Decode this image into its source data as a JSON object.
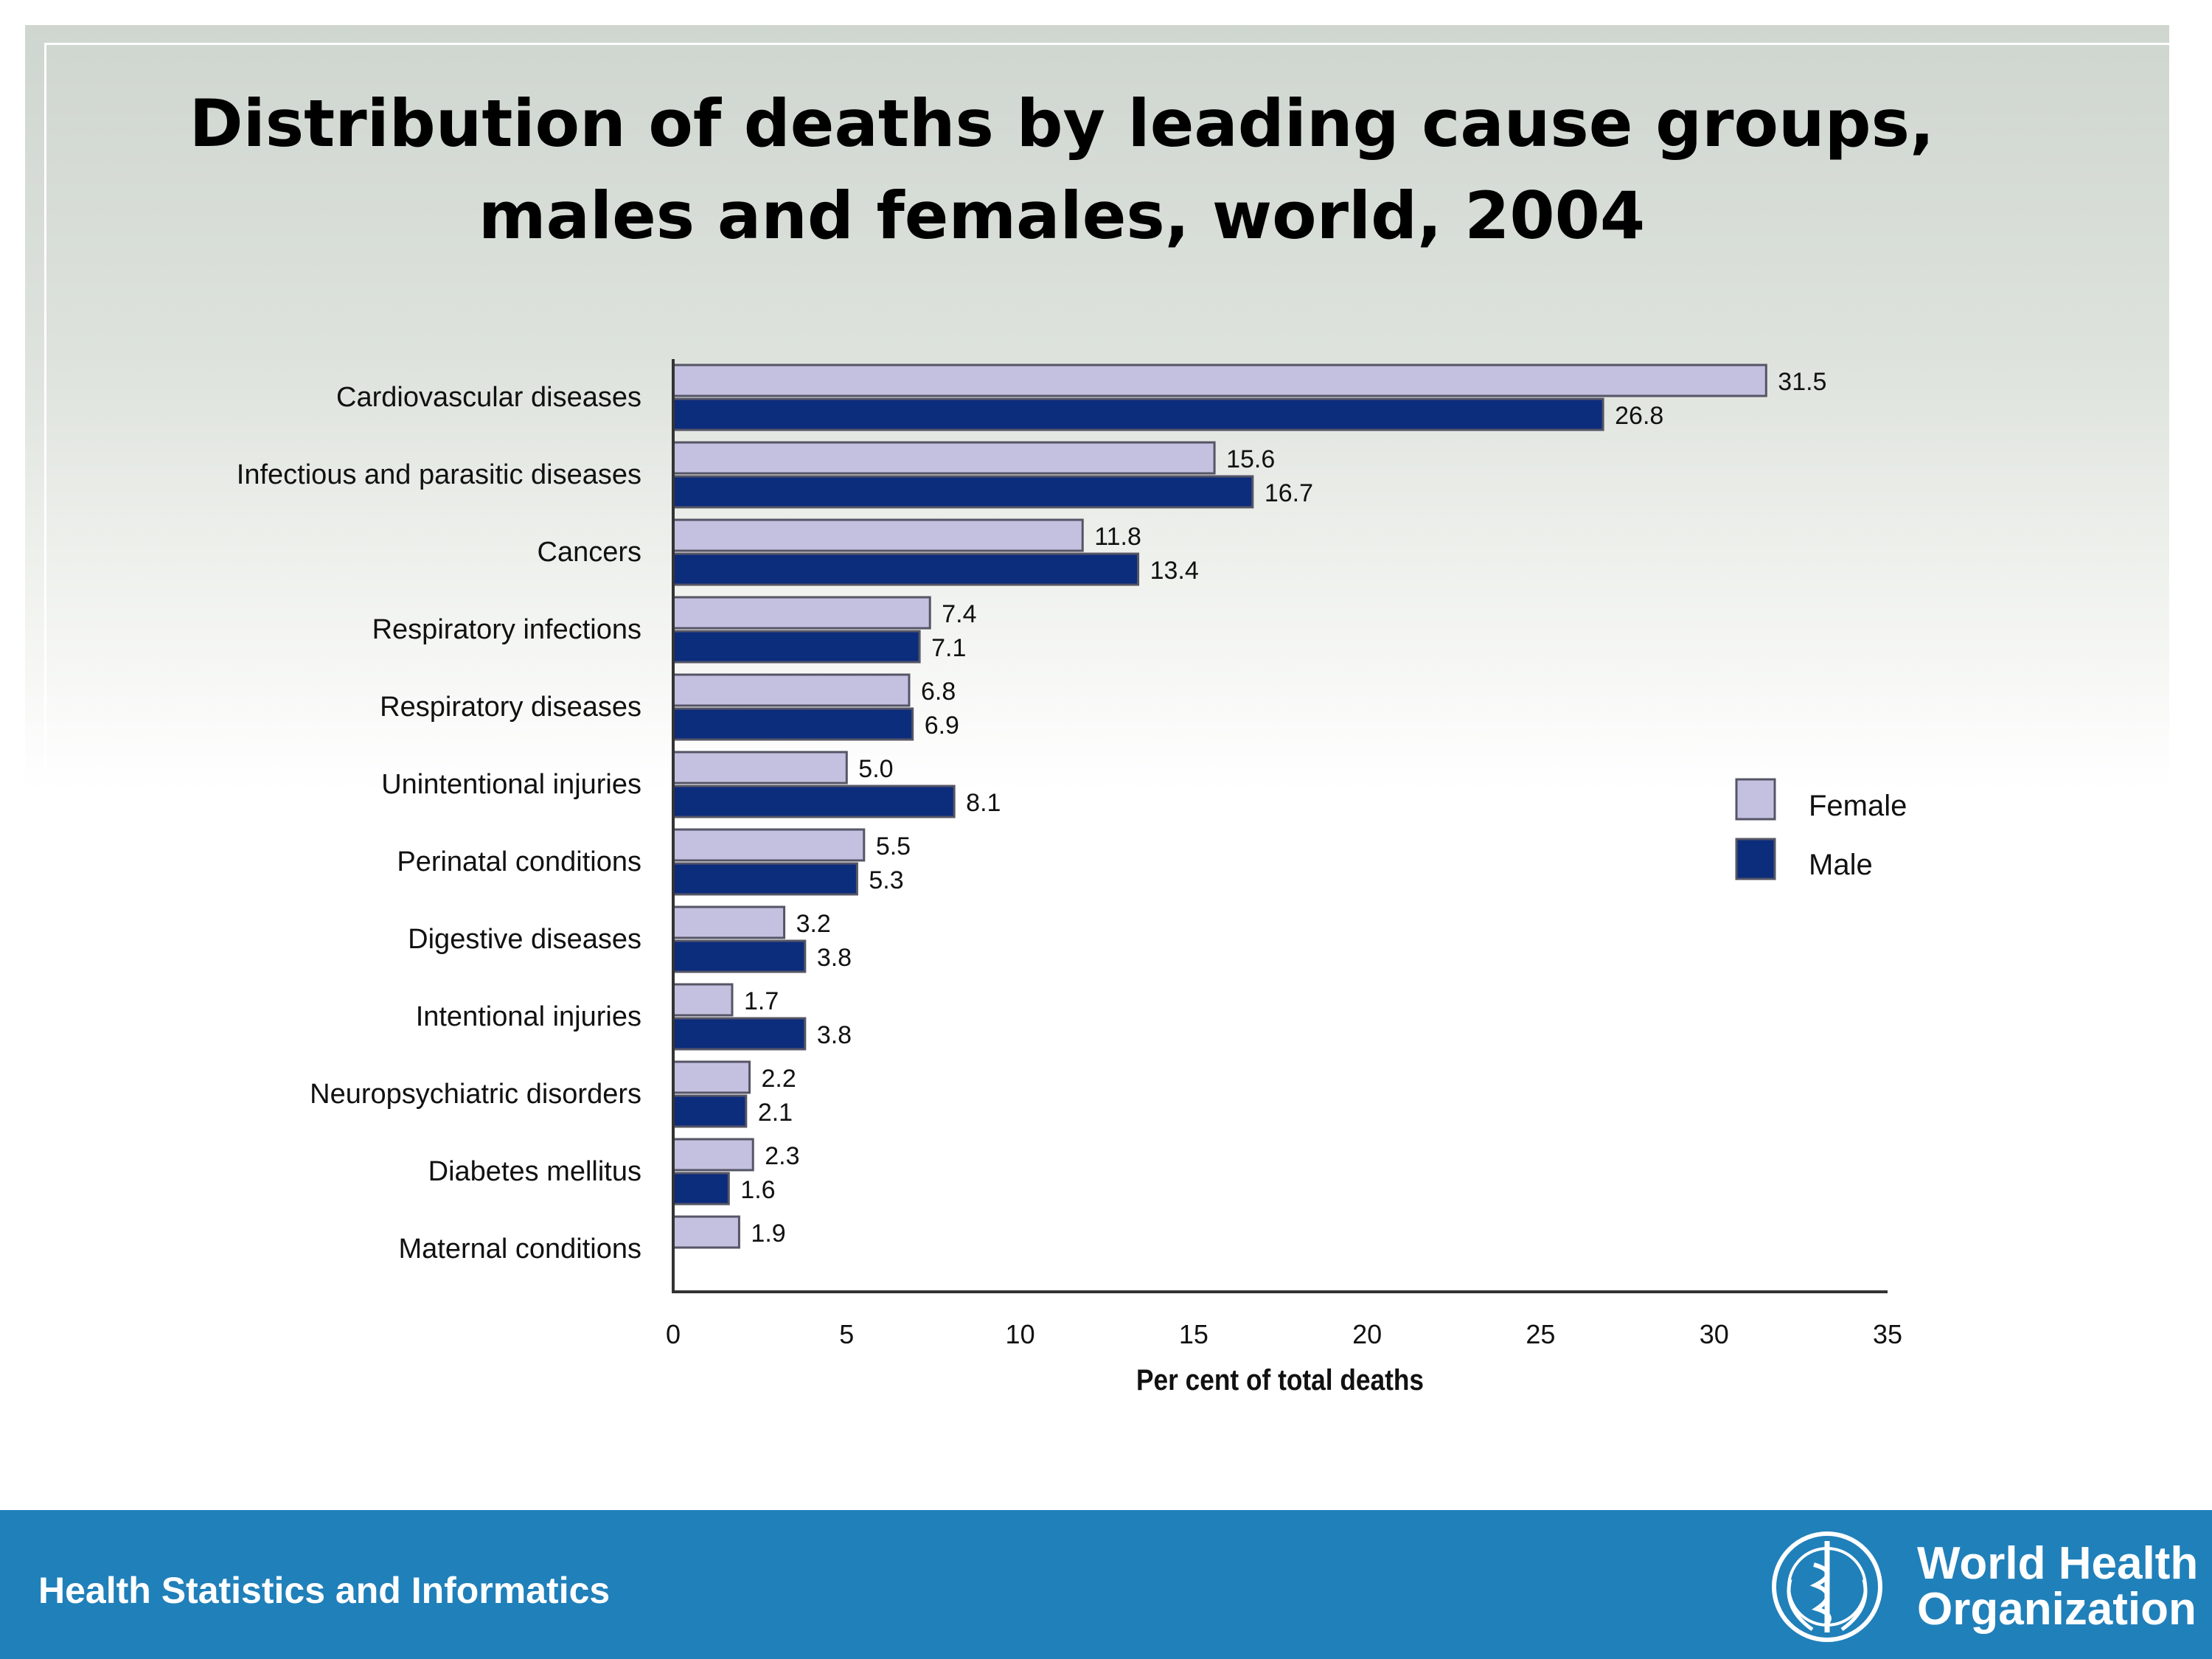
{
  "slide": {
    "title_line1": "Distribution of deaths by leading cause groups,",
    "title_line2": "males and females, world, 2004"
  },
  "footer": {
    "text": "Health Statistics and Informatics",
    "logo_line1": "World Health",
    "logo_line2": "Organization"
  },
  "colors": {
    "female": "#c4c0e0",
    "male": "#0c2c7c",
    "footer": "#2080ba",
    "bar_border": "#555566"
  },
  "chart_data": {
    "type": "bar",
    "orientation": "horizontal",
    "categories": [
      "Cardiovascular diseases",
      "Infectious and parasitic diseases",
      "Cancers",
      "Respiratory infections",
      "Respiratory diseases",
      "Unintentional injuries",
      "Perinatal conditions",
      "Digestive diseases",
      "Intentional injuries",
      "Neuropsychiatric disorders",
      "Diabetes mellitus",
      "Maternal conditions"
    ],
    "series": [
      {
        "name": "Female",
        "values": [
          31.5,
          15.6,
          11.8,
          7.4,
          6.8,
          5.0,
          5.5,
          3.2,
          1.7,
          2.2,
          2.3,
          1.9
        ]
      },
      {
        "name": "Male",
        "values": [
          26.8,
          16.7,
          13.4,
          7.1,
          6.9,
          8.1,
          5.3,
          3.8,
          3.8,
          2.1,
          1.6,
          null
        ]
      }
    ],
    "value_labels": {
      "Female": [
        "31.5",
        "15.6",
        "11.8",
        "7.4",
        "6.8",
        "5.0",
        "5.5",
        "3.2",
        "1.7",
        "2.2",
        "2.3",
        "1.9"
      ],
      "Male": [
        "26.8",
        "16.7",
        "13.4",
        "7.1",
        "6.9",
        "8.1",
        "5.3",
        "3.8",
        "3.8",
        "2.1",
        "1.6",
        ""
      ]
    },
    "xlabel": "Per cent of total deaths",
    "ylabel": "",
    "xlim": [
      0,
      35
    ],
    "xticks": [
      0,
      5,
      10,
      15,
      20,
      25,
      30,
      35
    ],
    "grid": false,
    "legend": "right"
  }
}
